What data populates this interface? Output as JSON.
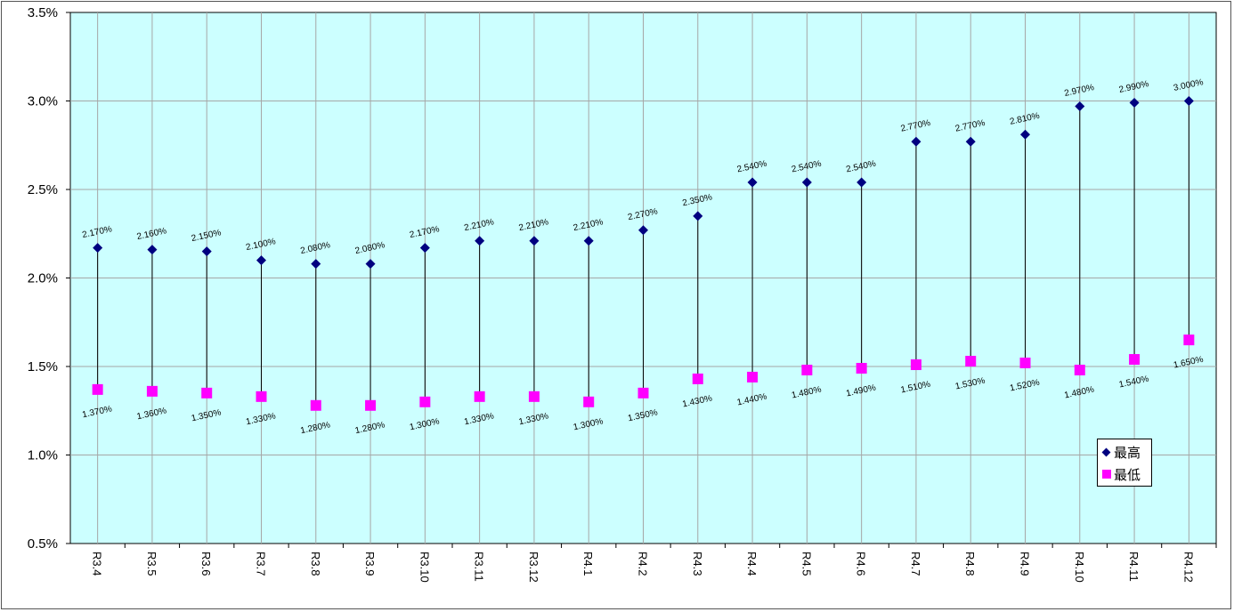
{
  "chart_data": {
    "type": "line",
    "categories": [
      "R3.4",
      "R3.5",
      "R3.6",
      "R3.7",
      "R3.8",
      "R3.9",
      "R3.10",
      "R3.11",
      "R3.12",
      "R4.1",
      "R4.2",
      "R4.3",
      "R4.4",
      "R4.5",
      "R4.6",
      "R4.7",
      "R4.8",
      "R4.9",
      "R4.10",
      "R4.11",
      "R4.12"
    ],
    "series": [
      {
        "name": "最高",
        "marker": "diamond",
        "color": "#000080",
        "values": [
          2.17,
          2.16,
          2.15,
          2.1,
          2.08,
          2.08,
          2.17,
          2.21,
          2.21,
          2.21,
          2.27,
          2.35,
          2.54,
          2.54,
          2.54,
          2.77,
          2.77,
          2.81,
          2.97,
          2.99,
          3.0
        ],
        "labels": [
          "2.170%",
          "2.160%",
          "2.150%",
          "2.100%",
          "2.080%",
          "2.080%",
          "2.170%",
          "2.210%",
          "2.210%",
          "2.210%",
          "2.270%",
          "2.350%",
          "2.540%",
          "2.540%",
          "2.540%",
          "2.770%",
          "2.770%",
          "2.810%",
          "2.970%",
          "2.990%",
          "3.000%"
        ]
      },
      {
        "name": "最低",
        "marker": "square",
        "color": "#ff00ff",
        "values": [
          1.37,
          1.36,
          1.35,
          1.33,
          1.28,
          1.28,
          1.3,
          1.33,
          1.33,
          1.3,
          1.35,
          1.43,
          1.44,
          1.48,
          1.49,
          1.51,
          1.53,
          1.52,
          1.48,
          1.54,
          1.65
        ],
        "labels": [
          "1.370%",
          "1.360%",
          "1.350%",
          "1.330%",
          "1.280%",
          "1.280%",
          "1.300%",
          "1.330%",
          "1.330%",
          "1.300%",
          "1.350%",
          "1.430%",
          "1.440%",
          "1.480%",
          "1.490%",
          "1.510%",
          "1.530%",
          "1.520%",
          "1.480%",
          "1.540%",
          "1.650%"
        ]
      }
    ],
    "high_low_lines": true,
    "ylim": [
      0.5,
      3.5
    ],
    "yticks": [
      {
        "value": 0.5,
        "label": "0.5%"
      },
      {
        "value": 1.0,
        "label": "1.0%"
      },
      {
        "value": 1.5,
        "label": "1.5%"
      },
      {
        "value": 2.0,
        "label": "2.0%"
      },
      {
        "value": 2.5,
        "label": "2.5%"
      },
      {
        "value": 3.0,
        "label": "3.0%"
      },
      {
        "value": 3.5,
        "label": "3.5%"
      }
    ],
    "grid": true,
    "plot_background": "#ccffff",
    "legend_position": "right-bottom inside plot",
    "xtick_rotation": "vertical"
  }
}
